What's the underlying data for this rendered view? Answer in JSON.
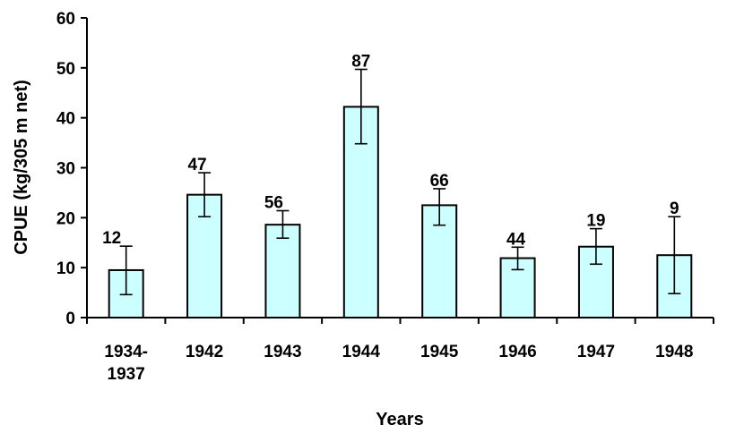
{
  "chart_data": {
    "type": "bar",
    "title": "",
    "xlabel": "Years",
    "ylabel": "CPUE (kg/305 m net)",
    "ylim": [
      0,
      60
    ],
    "yticks": [
      "0",
      "10",
      "20",
      "30",
      "40",
      "50",
      "60"
    ],
    "grid": false,
    "categories": [
      [
        "1934-",
        "1937"
      ],
      [
        "1942"
      ],
      [
        "1943"
      ],
      [
        "1944"
      ],
      [
        "1945"
      ],
      [
        "1946"
      ],
      [
        "1947"
      ],
      [
        "1948"
      ]
    ],
    "values": [
      9.5,
      24.6,
      18.6,
      42.2,
      22.5,
      11.9,
      14.2,
      12.5
    ],
    "error_low": [
      4.6,
      20.2,
      15.9,
      34.8,
      18.5,
      9.6,
      10.7,
      4.8
    ],
    "error_high": [
      14.3,
      29.0,
      21.4,
      49.7,
      25.8,
      14.1,
      17.8,
      20.2
    ],
    "data_labels": [
      "12",
      "47",
      "56",
      "87",
      "66",
      "44",
      "19",
      "9"
    ],
    "colors": {
      "bar_fill": "#ccffff",
      "bar_stroke": "#000000",
      "axis": "#000000"
    }
  }
}
